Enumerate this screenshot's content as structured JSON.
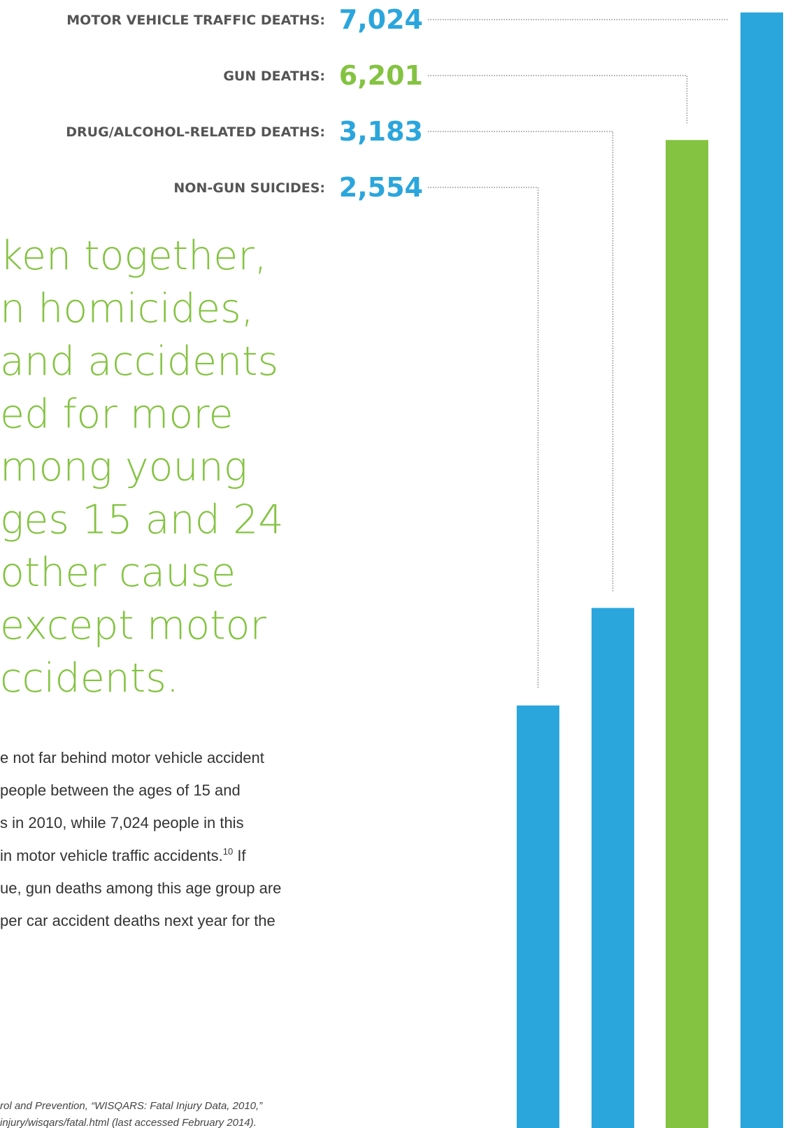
{
  "chart_data": {
    "type": "bar",
    "categories": [
      "NON-GUN SUICIDES:",
      "DRUG/ALCOHOL-RELATED DEATHS:",
      "GUN DEATHS:",
      "MOTOR VEHICLE TRAFFIC DEATHS:"
    ],
    "values": [
      2554,
      3183,
      6201,
      7024
    ],
    "value_labels": [
      "2,554",
      "3,183",
      "6,201",
      "7,024"
    ],
    "colors": [
      "#2ba6dd",
      "#2ba6dd",
      "#84c341",
      "#2ba6dd"
    ]
  },
  "headline": [
    "ken together,",
    "n homicides,",
    " and accidents",
    "ed for more",
    "mong young",
    "ges 15 and 24",
    " other cause",
    " except motor",
    "ccidents."
  ],
  "body": [
    {
      "text": "e not far behind motor vehicle accident"
    },
    {
      "text": "people between the ages of 15 and"
    },
    {
      "text": "s in 2010, while 7,024 people in this"
    },
    {
      "text": " in motor vehicle traffic accidents.",
      "sup": "10",
      "rest": " If"
    },
    {
      "text": "ue, gun deaths among this age group are"
    },
    {
      "text": "per car accident deaths next year for the"
    }
  ],
  "footnote": [
    "rol and Prevention, “WISQARS: Fatal Injury Data, 2010,”",
    "injury/wisqars/fatal.html (last accessed February 2014)."
  ]
}
